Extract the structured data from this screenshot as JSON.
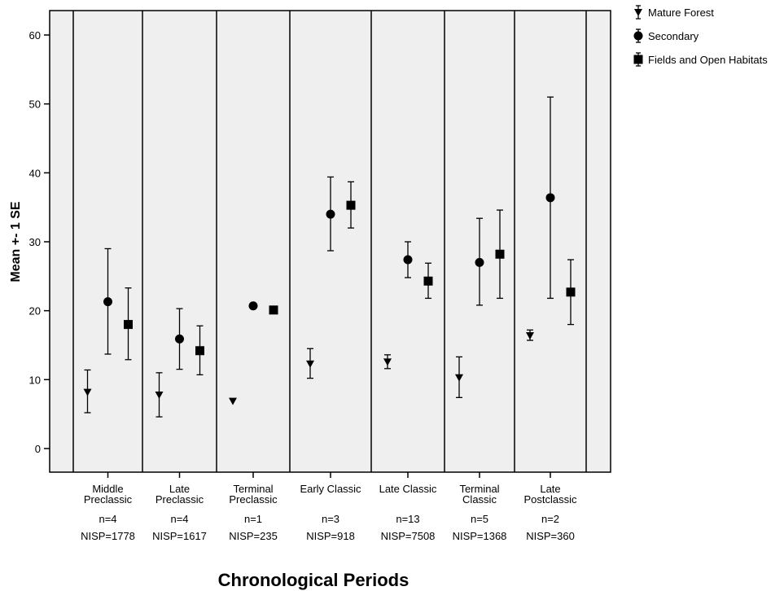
{
  "chart_data": {
    "type": "scatter",
    "xlabel": "Chronological Periods",
    "ylabel": "Mean +- 1 SE",
    "ylim": [
      -3.5,
      64
    ],
    "yticks": [
      0,
      10,
      20,
      30,
      40,
      50,
      60
    ],
    "grid": false,
    "legend_position": "top-right outside",
    "categories": [
      {
        "name": [
          "Middle",
          "Preclassic"
        ],
        "n": "n=4",
        "nisp": "NISP=1778"
      },
      {
        "name": [
          "Late",
          "Preclassic"
        ],
        "n": "n=4",
        "nisp": "NISP=1617"
      },
      {
        "name": [
          "Terminal",
          "Preclassic"
        ],
        "n": "n=1",
        "nisp": "NISP=235"
      },
      {
        "name": [
          "Early Classic"
        ],
        "n": "n=3",
        "nisp": "NISP=918"
      },
      {
        "name": [
          "Late Classic"
        ],
        "n": "n=13",
        "nisp": "NISP=7508"
      },
      {
        "name": [
          "Terminal",
          "Classic"
        ],
        "n": "n=5",
        "nisp": "NISP=1368"
      },
      {
        "name": [
          "Late",
          "Postclassic"
        ],
        "n": "n=2",
        "nisp": "NISP=360"
      }
    ],
    "series": [
      {
        "name": "Mature Forest",
        "marker": "triangle-down",
        "means": [
          8.2,
          7.8,
          6.9,
          12.3,
          12.6,
          10.3,
          16.4
        ],
        "lower": [
          5.2,
          4.6,
          null,
          10.2,
          11.6,
          7.4,
          15.7
        ],
        "upper": [
          11.4,
          11.0,
          null,
          14.5,
          13.6,
          13.3,
          17.2
        ]
      },
      {
        "name": "Secondary",
        "marker": "circle",
        "means": [
          21.3,
          15.9,
          20.7,
          34.0,
          27.4,
          27.0,
          36.4
        ],
        "lower": [
          13.7,
          11.5,
          null,
          28.7,
          24.8,
          20.8,
          21.8
        ],
        "upper": [
          29.0,
          20.3,
          null,
          39.4,
          30.0,
          33.4,
          51.0
        ]
      },
      {
        "name": "Fields and Open Habitats",
        "marker": "square",
        "means": [
          18.0,
          14.2,
          20.1,
          35.3,
          24.3,
          28.2,
          22.7
        ],
        "lower": [
          12.9,
          10.7,
          null,
          32.0,
          21.8,
          21.8,
          18.0
        ],
        "upper": [
          23.3,
          17.8,
          null,
          38.7,
          26.9,
          34.6,
          27.4
        ]
      }
    ]
  }
}
